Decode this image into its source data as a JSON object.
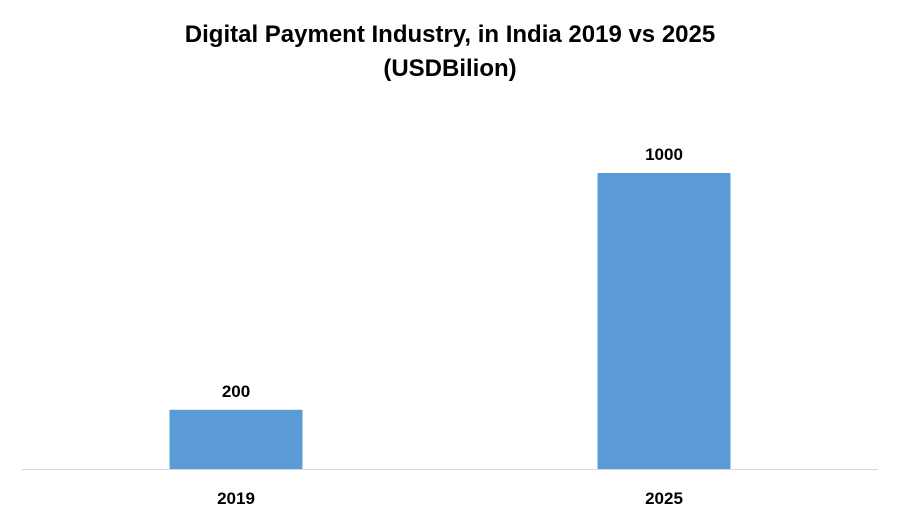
{
  "chart_data": {
    "type": "bar",
    "title": "Digital Payment Industry, in India 2019 vs 2025",
    "subtitle": "(USDBilion)",
    "categories": [
      "2019",
      "2025"
    ],
    "values": [
      200,
      1000
    ],
    "data_labels": [
      "200",
      "1000"
    ],
    "xlabel": "",
    "ylabel": "",
    "ylim": [
      0,
      1200
    ],
    "grid": false,
    "legend": "none",
    "bar_color": "#5b9bd5",
    "axis_color": "#d9d9d9"
  }
}
